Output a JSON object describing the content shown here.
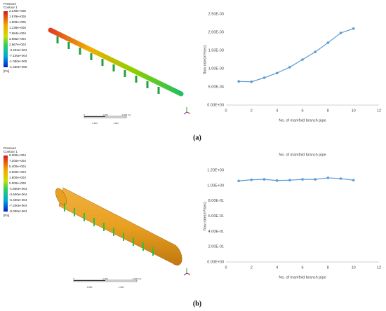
{
  "chart_data": [
    {
      "type": "line",
      "ylabel": "flow rate(m³/sec)",
      "xlabel": "No. of manifold branch pipe",
      "x": [
        1,
        2,
        3,
        4,
        5,
        6,
        7,
        8,
        9,
        10
      ],
      "series": [
        {
          "name": "flow rate",
          "color": "#5b9bd5",
          "values": [
            0.00065,
            0.00064,
            0.00075,
            0.00088,
            0.00104,
            0.00125,
            0.00146,
            0.00171,
            0.00198,
            0.0021
          ]
        }
      ],
      "xlim": [
        0,
        12
      ],
      "xticks": [
        0,
        2,
        4,
        6,
        8,
        10,
        12
      ],
      "ylim": [
        0,
        0.0025
      ],
      "yticks": [
        {
          "value": 0,
          "label": "0.00E+00"
        },
        {
          "value": 0.0005,
          "label": "5.00E-04"
        },
        {
          "value": 0.001,
          "label": "1.00E-03"
        },
        {
          "value": 0.0015,
          "label": "1.50E-03"
        },
        {
          "value": 0.002,
          "label": "2.00E-03"
        },
        {
          "value": 0.0025,
          "label": "2.50E-03"
        }
      ]
    },
    {
      "type": "line",
      "title": "No. of manifold branch pipe",
      "ylabel": "flow rate(m³/sec)",
      "xlabel": "No. of manifold branch pipe",
      "x": [
        1,
        2,
        3,
        4,
        5,
        6,
        7,
        8,
        9,
        10
      ],
      "series": [
        {
          "name": "flow rate",
          "color": "#5b9bd5",
          "values": [
            1.06,
            1.075,
            1.08,
            1.065,
            1.07,
            1.08,
            1.08,
            1.1,
            1.09,
            1.07
          ]
        }
      ],
      "xlim": [
        0,
        12
      ],
      "xticks": [
        0,
        2,
        4,
        6,
        8,
        10,
        12
      ],
      "ylim": [
        0,
        1.2
      ],
      "yticks": [
        {
          "value": 0,
          "label": "0.00E+00"
        },
        {
          "value": 0.2,
          "label": "2.00E-01"
        },
        {
          "value": 0.4,
          "label": "4.00E-01"
        },
        {
          "value": 0.6,
          "label": "6.00E-01"
        },
        {
          "value": 0.8,
          "label": "8.00E-01"
        },
        {
          "value": 1.0,
          "label": "1.00E+00"
        },
        {
          "value": 1.2,
          "label": "1.20E+00"
        }
      ]
    }
  ],
  "figure": {
    "panels": [
      {
        "caption": "(a)",
        "legend": {
          "title": "Pressure",
          "subtitle": "Contour 1",
          "unit": "[Pa]",
          "values": [
            "2.249e+005",
            "1.879e+005",
            "1.509e+005",
            "1.138e+005",
            "7.684e+004",
            "3.965e+004",
            "2.967e+003",
            "-3.402e+004",
            "-7.105e+004",
            "-1.080e+005",
            "-1.450e+005"
          ]
        },
        "scale": [
          "0",
          "1.000",
          "2.000 (m)",
          "0.500",
          "1.500"
        ]
      },
      {
        "caption": "(b)",
        "legend": {
          "title": "Pressure",
          "subtitle": "Contour 1",
          "unit": "[Pa]",
          "values": [
            "9.000e+004",
            "7.200e+004",
            "5.400e+004",
            "3.600e+004",
            "1.800e+004",
            "0.000e+000",
            "-1.800e+004",
            "-3.600e+004",
            "-5.400e+004",
            "-7.200e+004",
            "-9.000e+004"
          ]
        },
        "scale": [
          "0",
          "1.000",
          "2.000 (m)",
          "0.500",
          "1.500"
        ]
      }
    ]
  }
}
